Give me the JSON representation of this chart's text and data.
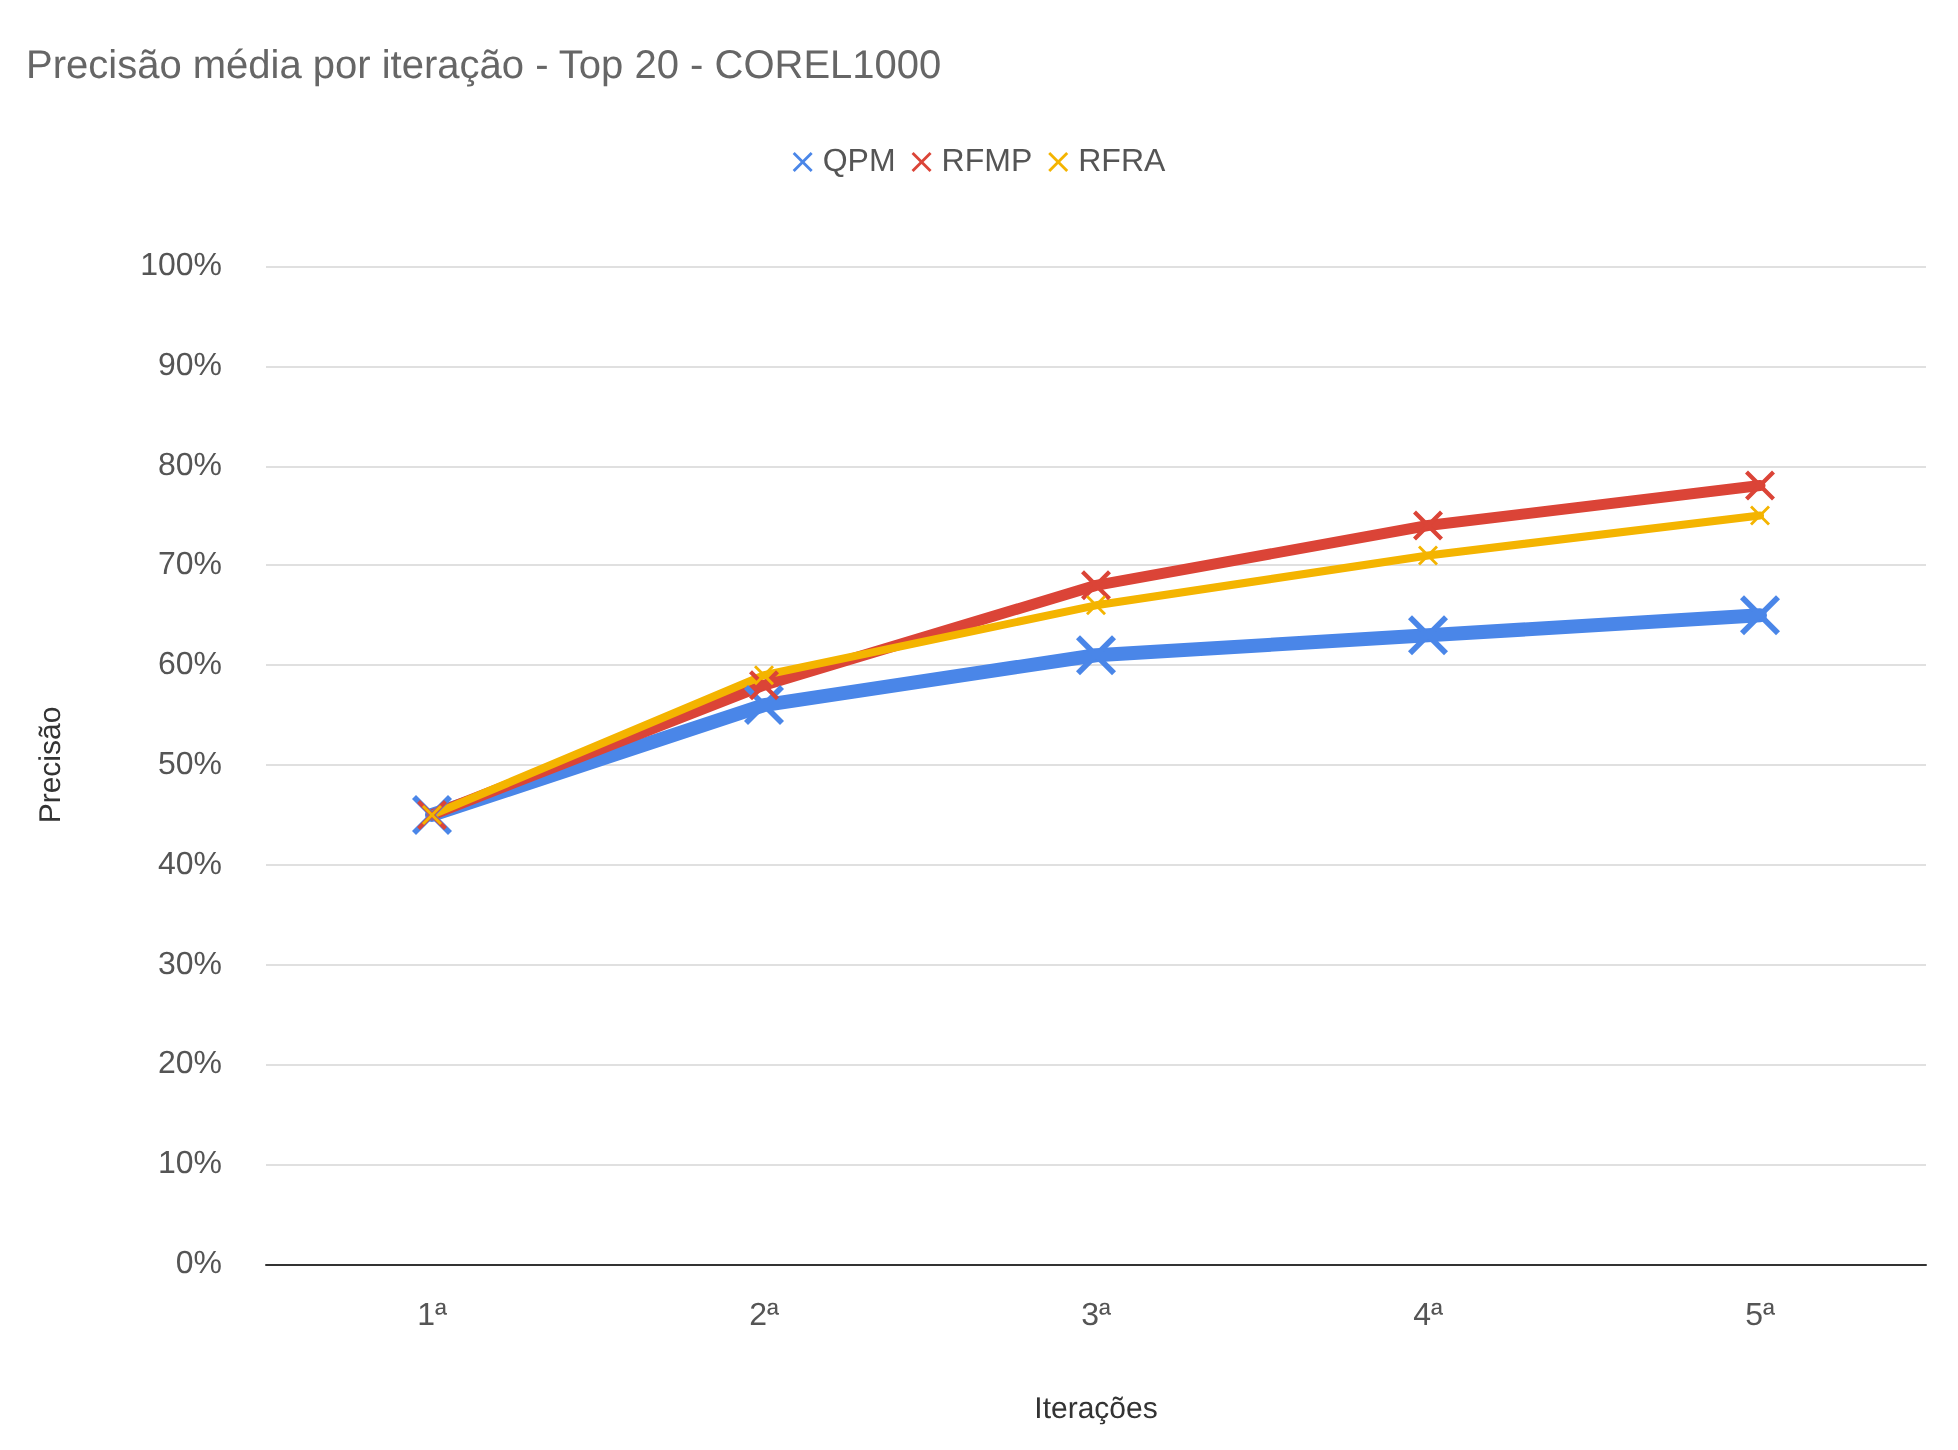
{
  "chart_data": {
    "type": "line",
    "title": "Precisão média por iteração - Top 20 - COREL1000",
    "xlabel": "Iterações",
    "ylabel": "Precisão",
    "categories": [
      "1ª",
      "2ª",
      "3ª",
      "4ª",
      "5ª"
    ],
    "series": [
      {
        "name": "QPM",
        "color": "#4a86e8",
        "values": [
          45,
          56,
          61,
          63,
          65
        ]
      },
      {
        "name": "RFMP",
        "color": "#db4437",
        "values": [
          45,
          58,
          68,
          74,
          78
        ]
      },
      {
        "name": "RFRA",
        "color": "#f4b400",
        "values": [
          45,
          59,
          66,
          71,
          75
        ]
      }
    ],
    "ylim": [
      0,
      100
    ],
    "yticks": [
      {
        "value": 0,
        "label": "0%"
      },
      {
        "value": 10,
        "label": "10%"
      },
      {
        "value": 20,
        "label": "20%"
      },
      {
        "value": 30,
        "label": "30%"
      },
      {
        "value": 40,
        "label": "40%"
      },
      {
        "value": 50,
        "label": "50%"
      },
      {
        "value": 60,
        "label": "60%"
      },
      {
        "value": 70,
        "label": "70%"
      },
      {
        "value": 80,
        "label": "80%"
      },
      {
        "value": 90,
        "label": "90%"
      },
      {
        "value": 100,
        "label": "100%"
      }
    ],
    "grid": "y",
    "legend": "top",
    "marker": "cross",
    "line_style": "solid"
  }
}
